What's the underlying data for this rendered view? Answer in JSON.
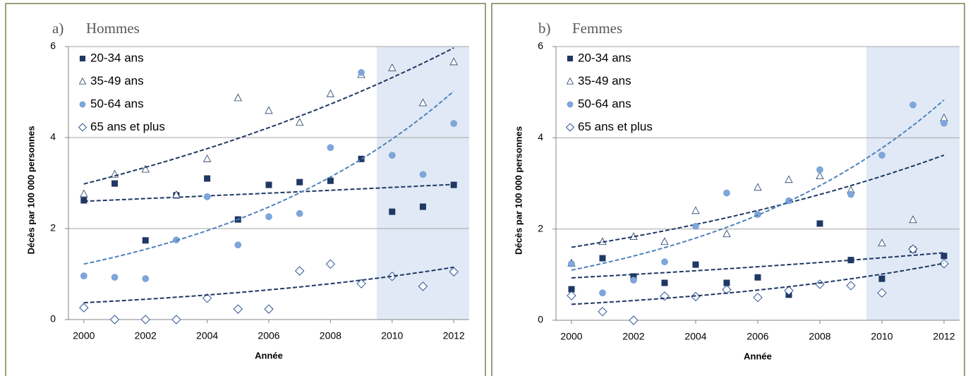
{
  "chart_data": [
    {
      "type": "scatter",
      "panel_label": "a)",
      "title": "Hommes",
      "x_label": "Année",
      "y_label": "Décès par 100 000 personnes",
      "x": [
        2000,
        2001,
        2002,
        2003,
        2004,
        2005,
        2006,
        2007,
        2008,
        2009,
        2010,
        2011,
        2012
      ],
      "xlim": [
        1999.5,
        2012.5
      ],
      "xticks": [
        2000,
        2002,
        2004,
        2006,
        2008,
        2010,
        2012
      ],
      "ylim": [
        0,
        6
      ],
      "yticks": [
        0,
        2,
        4,
        6
      ],
      "grid": true,
      "shaded_range": [
        2009.5,
        2012.5
      ],
      "series": [
        {
          "name": "20-34 ans",
          "marker": "square",
          "color": "#1f3864",
          "trend_color": "#1f3864",
          "values": [
            2.62,
            2.99,
            1.74,
            2.73,
            3.1,
            2.2,
            2.96,
            3.02,
            3.05,
            3.53,
            2.37,
            2.48,
            2.96
          ],
          "trend": [
            2.6,
            2.97
          ]
        },
        {
          "name": "35-49 ans",
          "marker": "triangle",
          "color": "#1f3864",
          "trend_color": "#1f3864",
          "values": [
            2.76,
            3.19,
            3.3,
            2.74,
            3.53,
            4.87,
            4.59,
            4.33,
            4.96,
            5.38,
            5.53,
            4.76,
            5.66
          ],
          "trend": [
            2.98,
            5.97
          ]
        },
        {
          "name": "50-64 ans",
          "marker": "circle",
          "color": "#7ea6dc",
          "trend_color": "#4f81bd",
          "values": [
            0.96,
            0.93,
            0.9,
            1.75,
            2.7,
            1.64,
            2.26,
            2.33,
            3.78,
            5.43,
            3.61,
            3.19,
            4.31
          ],
          "trend": [
            1.22,
            5.02
          ]
        },
        {
          "name": "65 ans et plus",
          "marker": "diamond",
          "color": "#2e5597",
          "trend_color": "#1f3864",
          "values": [
            0.26,
            0,
            0,
            0,
            0.47,
            0.23,
            0.23,
            1.07,
            1.22,
            0.79,
            0.95,
            0.73,
            1.05
          ],
          "trend": [
            0.37,
            1.15
          ]
        }
      ]
    },
    {
      "type": "scatter",
      "panel_label": "b)",
      "title": "Femmes",
      "x_label": "Année",
      "y_label": "Décès par 100 000 personnes",
      "x": [
        2000,
        2001,
        2002,
        2003,
        2004,
        2005,
        2006,
        2007,
        2008,
        2009,
        2010,
        2011,
        2012
      ],
      "xlim": [
        1999.5,
        2012.5
      ],
      "xticks": [
        2000,
        2002,
        2004,
        2006,
        2008,
        2010,
        2012
      ],
      "ylim": [
        0,
        6
      ],
      "yticks": [
        0,
        2,
        4,
        6
      ],
      "grid": true,
      "shaded_range": [
        2009.5,
        2012.5
      ],
      "series": [
        {
          "name": "20-34 ans",
          "marker": "square",
          "color": "#1f3864",
          "trend_color": "#1f3864",
          "values": [
            0.68,
            1.36,
            0.96,
            0.82,
            1.22,
            0.82,
            0.94,
            0.56,
            2.12,
            1.32,
            0.91,
            1.55,
            1.41
          ],
          "trend": [
            0.93,
            1.48
          ]
        },
        {
          "name": "35-49 ans",
          "marker": "triangle",
          "color": "#1f3864",
          "trend_color": "#1f3864",
          "values": [
            1.25,
            1.72,
            1.83,
            1.72,
            2.4,
            1.89,
            2.91,
            3.08,
            3.16,
            2.85,
            1.69,
            2.2,
            4.43
          ],
          "trend": [
            1.6,
            3.62
          ]
        },
        {
          "name": "50-64 ans",
          "marker": "circle",
          "color": "#7ea6dc",
          "trend_color": "#4f81bd",
          "values": [
            1.24,
            0.6,
            0.88,
            1.28,
            2.06,
            2.79,
            2.32,
            2.62,
            3.3,
            2.76,
            3.62,
            4.72,
            4.32
          ],
          "trend": [
            1.1,
            4.83
          ]
        },
        {
          "name": "65 ans et plus",
          "marker": "diamond",
          "color": "#2e5597",
          "trend_color": "#1f3864",
          "values": [
            0.54,
            0.19,
            0,
            0.53,
            0.52,
            0.67,
            0.5,
            0.65,
            0.79,
            0.76,
            0.6,
            1.56,
            1.24
          ],
          "trend": [
            0.35,
            1.25
          ]
        }
      ]
    }
  ]
}
